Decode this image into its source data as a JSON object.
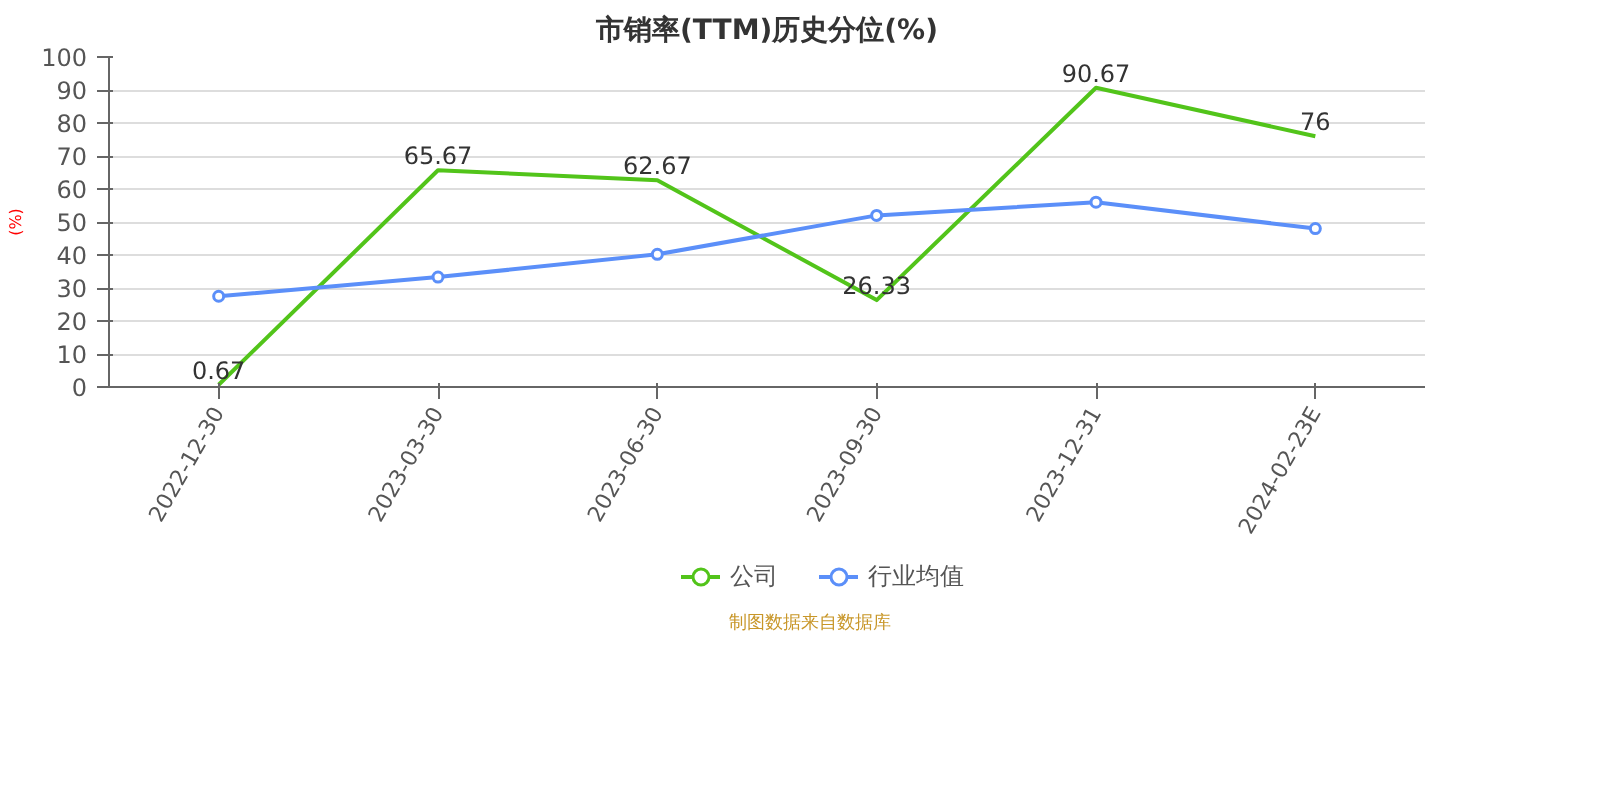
{
  "chart_data": {
    "type": "line",
    "title": "市销率(TTM)历史分位(%)",
    "ylabel": "(%)",
    "categories": [
      "2022-12-30",
      "2023-03-30",
      "2023-06-30",
      "2023-09-30",
      "2023-12-31",
      "2024-02-23E"
    ],
    "series": [
      {
        "name": "公司",
        "color": "#52c41a",
        "marker": "none",
        "values": [
          0.67,
          65.67,
          62.67,
          26.33,
          90.67,
          76
        ],
        "value_labels": [
          "0.67",
          "65.67",
          "62.67",
          "26.33",
          "90.67",
          "76"
        ]
      },
      {
        "name": "行业均值",
        "color": "#5b8ff9",
        "marker": "circle",
        "values": [
          27.5,
          33.3,
          40.2,
          52,
          56,
          48
        ]
      }
    ],
    "ylim": [
      0,
      100
    ],
    "yticks": [
      0,
      10,
      20,
      30,
      40,
      50,
      60,
      70,
      80,
      90,
      100
    ],
    "grid": "y",
    "legend": "bottom",
    "annotations": [
      "制图数据来自数据库"
    ]
  }
}
